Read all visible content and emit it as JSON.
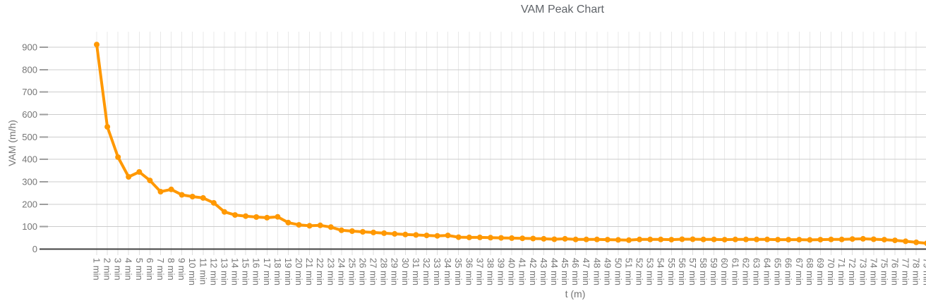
{
  "chart_data": {
    "type": "line",
    "title": "VAM Peak Chart",
    "xlabel": "t (m)",
    "ylabel": "VAM (m/h)",
    "legend": "none",
    "grid": true,
    "ylim": [
      0,
      950
    ],
    "yticks": [
      0,
      100,
      200,
      300,
      400,
      500,
      600,
      700,
      800,
      900
    ],
    "categories": [
      "1 min",
      "2 min",
      "3 min",
      "4 min",
      "5 min",
      "6 min",
      "7 min",
      "8 min",
      "9 min",
      "10 min",
      "11 min",
      "12 min",
      "13 min",
      "14 min",
      "15 min",
      "16 min",
      "17 min",
      "18 min",
      "19 min",
      "20 min",
      "21 min",
      "22 min",
      "23 min",
      "24 min",
      "25 min",
      "26 min",
      "27 min",
      "28 min",
      "29 min",
      "30 min",
      "31 min",
      "32 min",
      "33 min",
      "34 min",
      "35 min",
      "36 min",
      "37 min",
      "38 min",
      "39 min",
      "40 min",
      "41 min",
      "42 min",
      "43 min",
      "44 min",
      "45 min",
      "46 min",
      "47 min",
      "48 min",
      "49 min",
      "50 min",
      "51 min",
      "52 min",
      "53 min",
      "54 min",
      "55 min",
      "56 min",
      "57 min",
      "58 min",
      "59 min",
      "60 min",
      "61 min",
      "62 min",
      "63 min",
      "64 min",
      "65 min",
      "66 min",
      "67 min",
      "68 min",
      "69 min",
      "70 min",
      "71 min",
      "72 min",
      "73 min",
      "74 min",
      "75 min",
      "76 min",
      "77 min",
      "78 min",
      "79 min"
    ],
    "series": [
      {
        "name": "VAM",
        "color": "#ff9800",
        "values": [
          912,
          545,
          410,
          322,
          344,
          306,
          256,
          266,
          242,
          234,
          228,
          206,
          166,
          152,
          147,
          143,
          140,
          144,
          118,
          108,
          104,
          106,
          98,
          84,
          80,
          77,
          74,
          71,
          68,
          65,
          63,
          61,
          59,
          61,
          53,
          52,
          52,
          51,
          50,
          49,
          48,
          47,
          46,
          44,
          46,
          43,
          43,
          43,
          42,
          41,
          40,
          43,
          43,
          43,
          42,
          44,
          44,
          43,
          43,
          42,
          43,
          43,
          43,
          43,
          42,
          42,
          42,
          41,
          42,
          43,
          43,
          45,
          46,
          44,
          42,
          39,
          35,
          30,
          26
        ]
      }
    ]
  },
  "colors": {
    "background": "#ffffff",
    "line": "#ff9800",
    "title_text": "#5f6368",
    "tick_text": "#757575",
    "axis_title_text": "#757575",
    "axis_line": "#424242",
    "h_gridline": "#cccccc",
    "v_gridline": "#e8e8e8",
    "y_tick_mark": "#9e9e9e",
    "x_tick_mark": "#dddddd"
  }
}
